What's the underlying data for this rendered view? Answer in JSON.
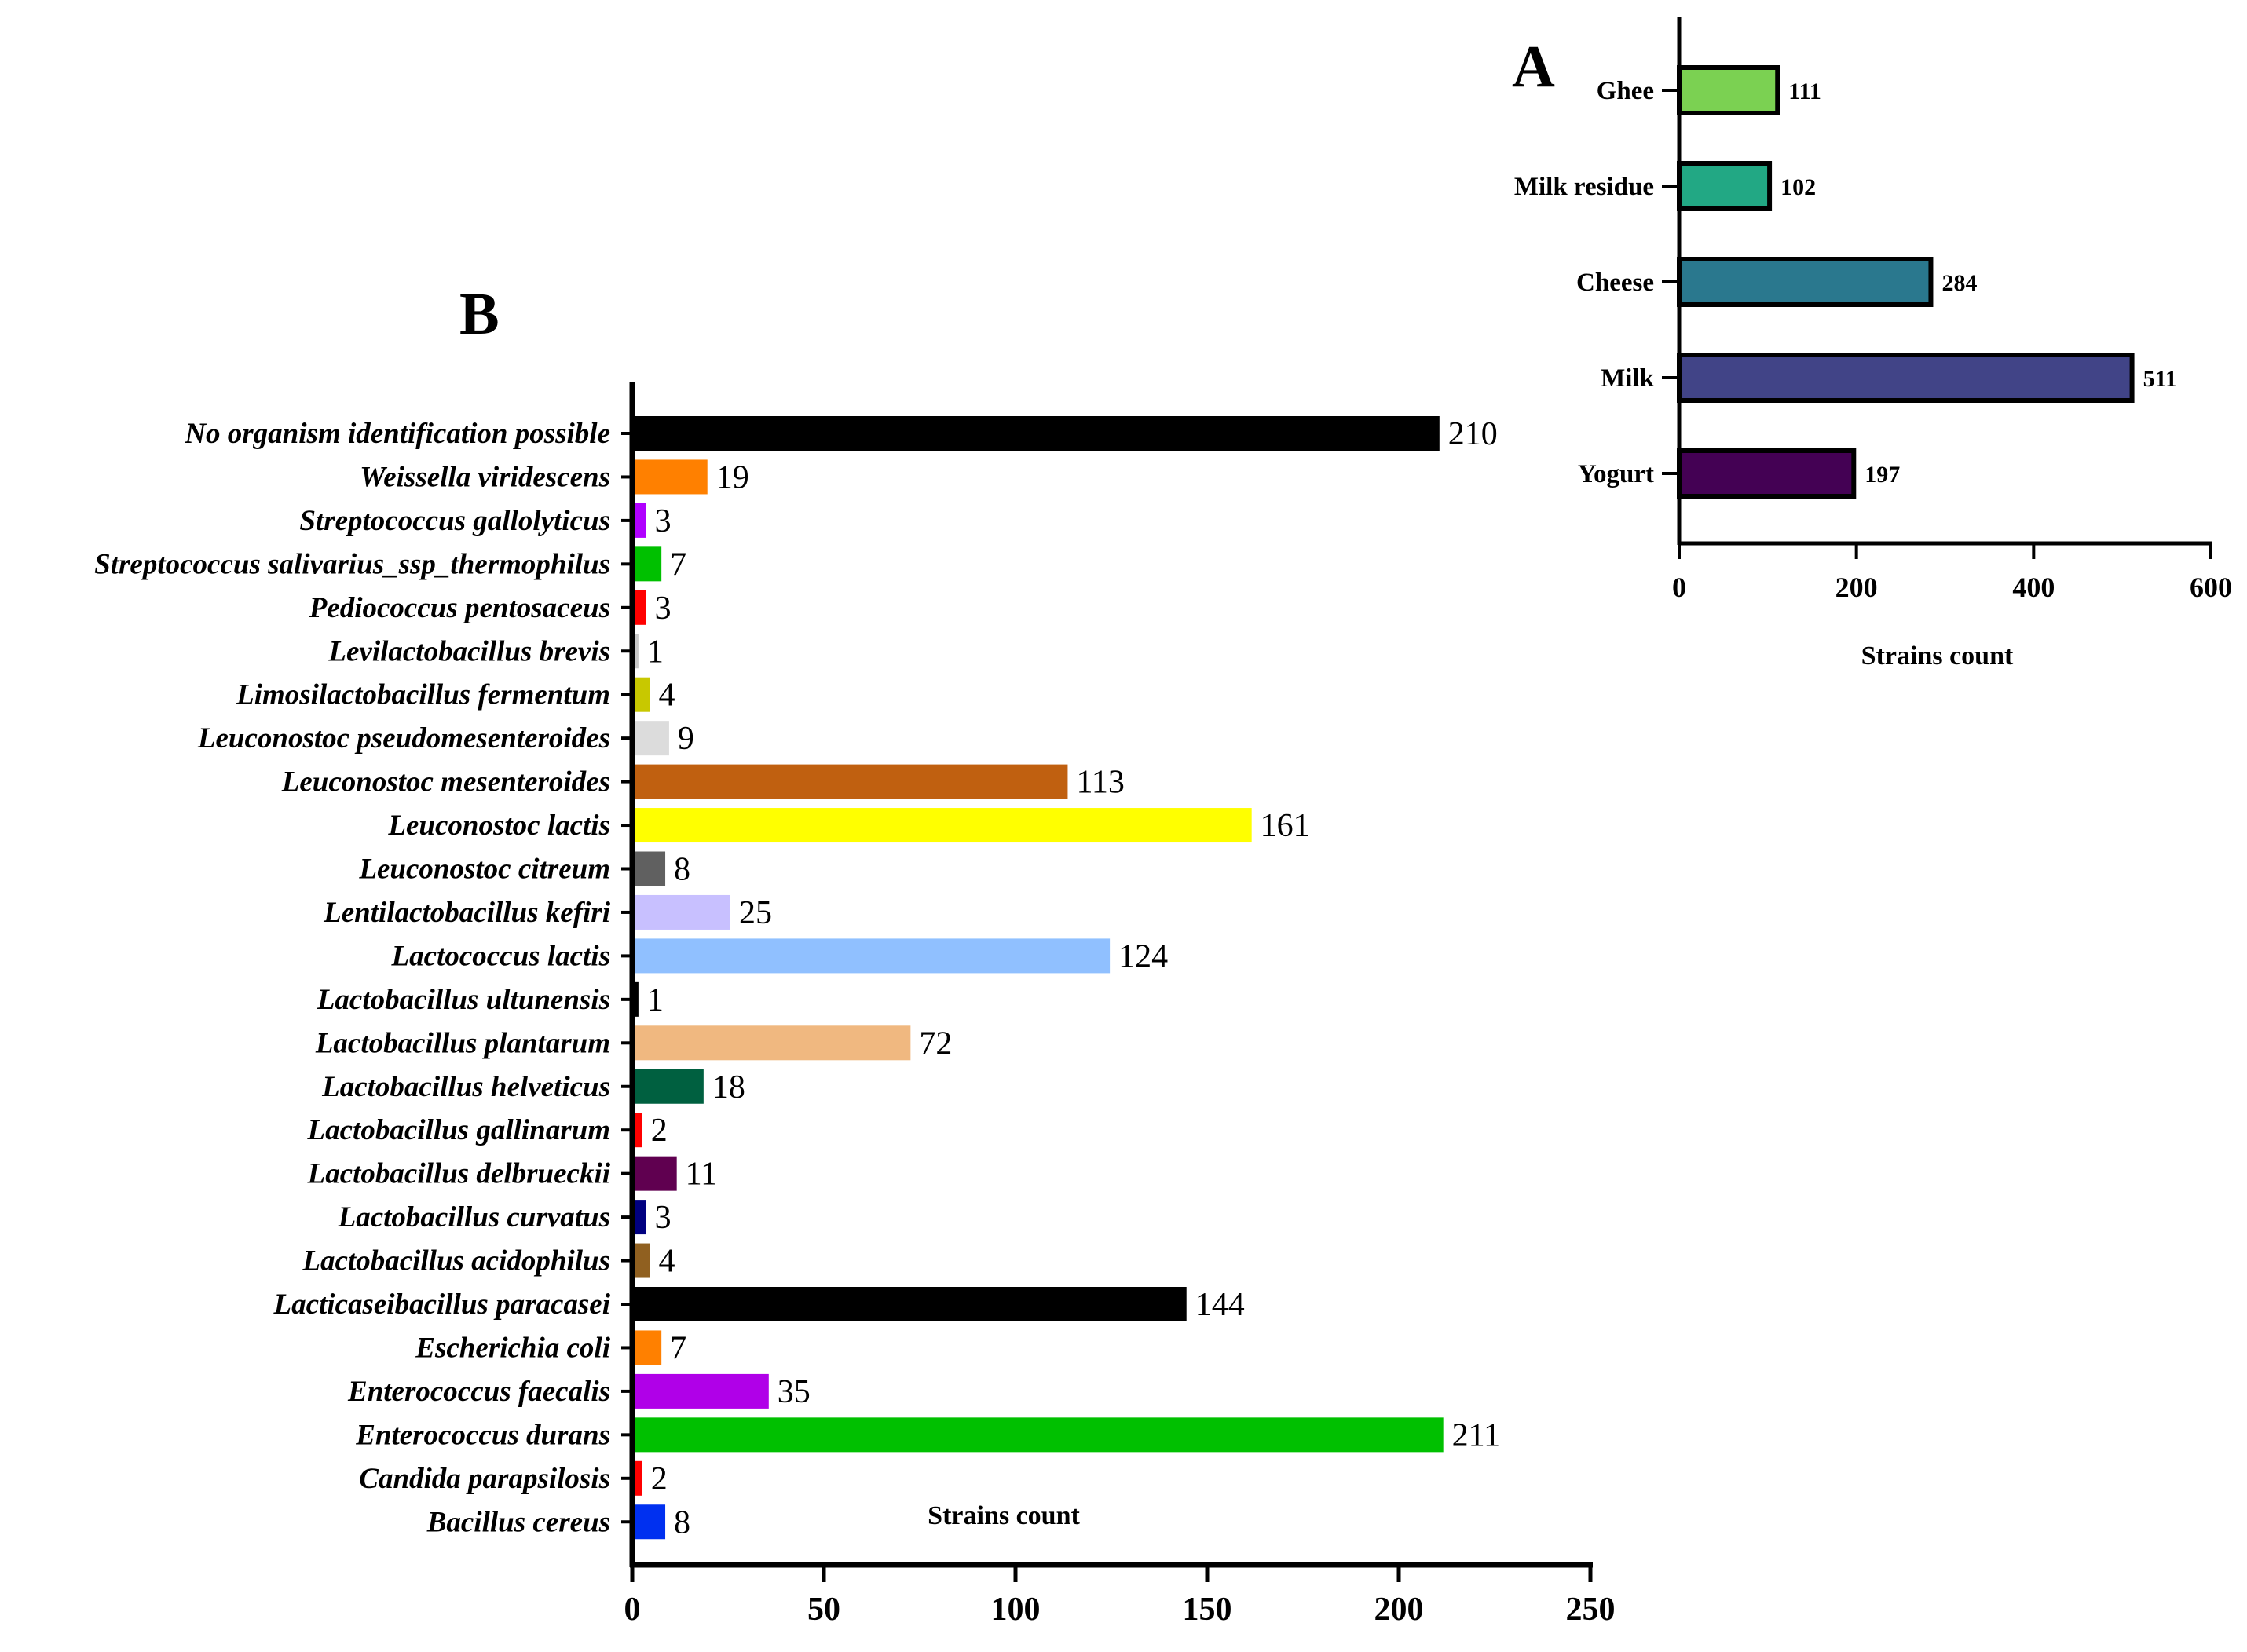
{
  "chart_data": [
    {
      "panel": "A",
      "type": "bar",
      "orientation": "horizontal",
      "categories": [
        "Ghee",
        "Milk residue",
        "Cheese",
        "Milk",
        "Yogurt"
      ],
      "values": [
        111,
        102,
        284,
        511,
        197
      ],
      "colors": [
        "#7bd152",
        "#22a884",
        "#2a788e",
        "#414487",
        "#440154"
      ],
      "xlabel": "Strains count",
      "xlim": [
        0,
        600
      ],
      "xticks": [
        0,
        200,
        400,
        600
      ],
      "grid": false,
      "legend": "none"
    },
    {
      "panel": "B",
      "type": "bar",
      "orientation": "horizontal",
      "categories": [
        "No organism identification possible",
        "Weissella viridescens",
        "Streptococcus gallolyticus",
        "Streptococcus salivarius_ssp_thermophilus",
        "Pediococcus pentosaceus",
        "Levilactobacillus brevis",
        "Limosilactobacillus fermentum",
        "Leuconostoc pseudomesenteroides",
        "Leuconostoc mesenteroides",
        "Leuconostoc lactis",
        "Leuconostoc citreum",
        "Lentilactobacillus kefiri",
        "Lactococcus lactis",
        "Lactobacillus ultunensis",
        "Lactobacillus plantarum",
        "Lactobacillus helveticus",
        "Lactobacillus gallinarum",
        "Lactobacillus delbrueckii",
        "Lactobacillus curvatus",
        "Lactobacillus acidophilus",
        "Lacticaseibacillus paracasei",
        "Escherichia coli",
        "Enterococcus faecalis",
        "Enterococcus durans",
        "Candida parapsilosis",
        "Bacillus cereus"
      ],
      "values": [
        210,
        19,
        3,
        7,
        3,
        1,
        4,
        9,
        113,
        161,
        8,
        25,
        124,
        1,
        72,
        18,
        2,
        11,
        3,
        4,
        144,
        7,
        35,
        211,
        2,
        8
      ],
      "colors": [
        "#000000",
        "#ff8000",
        "#b000ff",
        "#00c000",
        "#ff0000",
        "#c8c8c8",
        "#c8c800",
        "#dcdcdc",
        "#c06010",
        "#ffff00",
        "#606060",
        "#c8c0ff",
        "#90c0ff",
        "#000000",
        "#f0b880",
        "#006040",
        "#ff0000",
        "#600050",
        "#000080",
        "#906020",
        "#000000",
        "#ff8000",
        "#b000e8",
        "#00c000",
        "#ff0000",
        "#0030f0"
      ],
      "xlabel": "Strains count",
      "xlim": [
        0,
        250
      ],
      "xticks": [
        0,
        50,
        100,
        150,
        200,
        250
      ],
      "grid": false,
      "legend": "none"
    }
  ],
  "panel_labels": [
    "A",
    "B"
  ]
}
